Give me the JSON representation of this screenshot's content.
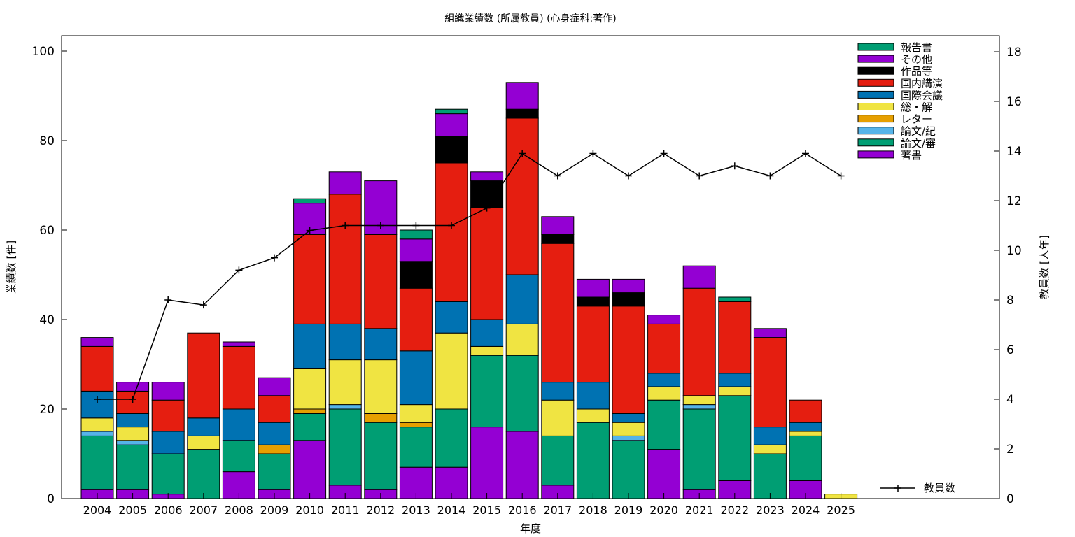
{
  "chart_data": {
    "type": "bar",
    "title": "組織業績数 (所属教員) (心身症科:著作)",
    "xlabel": "年度",
    "ylabel": "業績数 [件]",
    "y2label": "教員数 [人年]",
    "ylim": [
      0,
      100
    ],
    "y2lim": [
      0,
      18
    ],
    "yticks": [
      0,
      20,
      40,
      60,
      80,
      100
    ],
    "y2ticks": [
      0,
      2,
      4,
      6,
      8,
      10,
      12,
      14,
      16,
      18
    ],
    "legend_position": "top-right",
    "categories": [
      "2004",
      "2005",
      "2006",
      "2007",
      "2008",
      "2009",
      "2010",
      "2011",
      "2012",
      "2013",
      "2014",
      "2015",
      "2016",
      "2017",
      "2018",
      "2019",
      "2020",
      "2021",
      "2022",
      "2023",
      "2024",
      "2025"
    ],
    "series": [
      {
        "name": "著書",
        "color": "#9400d3",
        "values": [
          2,
          2,
          1,
          0,
          6,
          2,
          13,
          3,
          2,
          7,
          7,
          16,
          15,
          3,
          0,
          0,
          11,
          2,
          4,
          0,
          4,
          0
        ]
      },
      {
        "name": "論文/審",
        "color": "#009e73",
        "values": [
          12,
          10,
          9,
          11,
          7,
          8,
          6,
          17,
          15,
          9,
          13,
          16,
          17,
          11,
          17,
          13,
          11,
          18,
          19,
          10,
          10,
          0
        ]
      },
      {
        "name": "論文/紀",
        "color": "#56b4e9",
        "values": [
          1,
          1,
          0,
          0,
          0,
          0,
          0,
          1,
          0,
          0,
          0,
          0,
          0,
          0,
          0,
          1,
          0,
          1,
          0,
          0,
          0,
          0
        ]
      },
      {
        "name": "レター",
        "color": "#e69f00",
        "values": [
          0,
          0,
          0,
          0,
          0,
          2,
          1,
          0,
          2,
          1,
          0,
          0,
          0,
          0,
          0,
          0,
          0,
          0,
          0,
          0,
          0,
          0
        ]
      },
      {
        "name": "総・解",
        "color": "#f0e442",
        "values": [
          3,
          3,
          0,
          3,
          0,
          0,
          9,
          10,
          12,
          4,
          17,
          2,
          7,
          8,
          3,
          3,
          3,
          2,
          2,
          2,
          1,
          1
        ]
      },
      {
        "name": "国際会議",
        "color": "#0072b2",
        "values": [
          6,
          3,
          5,
          4,
          7,
          5,
          10,
          8,
          7,
          12,
          7,
          6,
          11,
          4,
          6,
          2,
          3,
          0,
          3,
          4,
          2,
          0
        ]
      },
      {
        "name": "国内講演",
        "color": "#e51e10",
        "values": [
          10,
          5,
          7,
          19,
          14,
          6,
          20,
          29,
          21,
          14,
          31,
          25,
          35,
          31,
          17,
          24,
          11,
          24,
          16,
          20,
          5,
          0
        ]
      },
      {
        "name": "作品等",
        "color": "#000000",
        "values": [
          0,
          0,
          0,
          0,
          0,
          0,
          0,
          0,
          0,
          6,
          6,
          6,
          2,
          2,
          2,
          3,
          0,
          0,
          0,
          0,
          0,
          0
        ]
      },
      {
        "name": "その他",
        "color": "#9400d3",
        "values": [
          2,
          2,
          4,
          0,
          1,
          4,
          7,
          5,
          12,
          5,
          5,
          2,
          6,
          4,
          4,
          3,
          2,
          5,
          0,
          2,
          0,
          0
        ]
      },
      {
        "name": "報告書",
        "color": "#009e73",
        "values": [
          0,
          0,
          0,
          0,
          0,
          0,
          1,
          0,
          0,
          2,
          1,
          0,
          0,
          0,
          0,
          0,
          0,
          0,
          1,
          0,
          0,
          0
        ]
      }
    ],
    "line": {
      "name": "教員数",
      "color": "#000000",
      "axis": "right",
      "x": [
        "2004",
        "2005",
        "2006",
        "2007",
        "2008",
        "2009",
        "2010",
        "2011",
        "2012",
        "2013",
        "2014",
        "2015",
        "2016",
        "2017",
        "2018",
        "2019",
        "2020",
        "2021",
        "2022",
        "2023",
        "2024",
        "2025"
      ],
      "values": [
        4,
        4,
        8,
        7.8,
        9.2,
        9.7,
        10.8,
        11,
        11,
        11,
        11,
        11.7,
        13.9,
        13,
        13.9,
        13,
        13.9,
        13,
        13.4,
        13,
        13.9,
        13
      ]
    }
  }
}
